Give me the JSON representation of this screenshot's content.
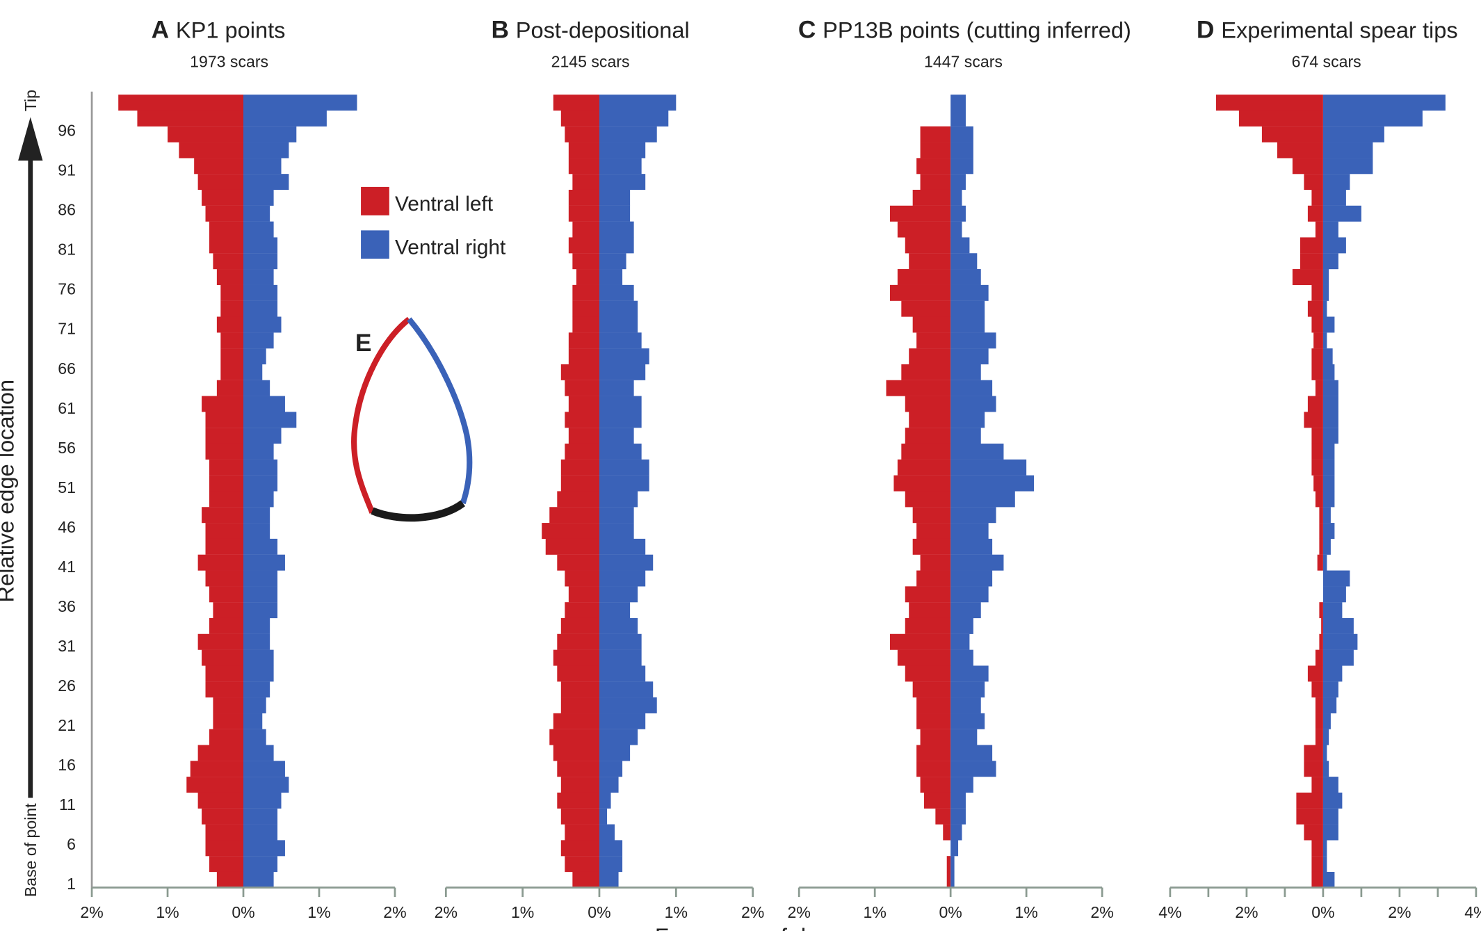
{
  "chart_data": {
    "type": "bar",
    "orientation": "horizontal-mirrored",
    "ylabel": "Relative edge location",
    "y_top_label": "Tip",
    "y_bottom_label": "Base of point",
    "xlabel": "Frequency of damage",
    "y_ticks": [
      "1",
      "6",
      "11",
      "16",
      "21",
      "26",
      "31",
      "36",
      "41",
      "46",
      "51",
      "56",
      "61",
      "66",
      "71",
      "76",
      "81",
      "86",
      "91",
      "96"
    ],
    "ylim": [
      1,
      100
    ],
    "legend": [
      {
        "name": "Ventral left",
        "color": "#cc1f26"
      },
      {
        "name": "Ventral right",
        "color": "#3a62b8"
      }
    ],
    "legend_placement": "top, inside panel A",
    "inset": {
      "label": "E",
      "left_color": "#cc1f26",
      "right_color": "#3a62b8",
      "base_color": "#1a1a1a"
    },
    "bin_start": [
      99,
      97,
      95,
      93,
      91,
      89,
      87,
      85,
      83,
      81,
      79,
      77,
      75,
      73,
      71,
      69,
      67,
      65,
      63,
      61,
      59,
      57,
      55,
      53,
      51,
      49,
      47,
      45,
      43,
      41,
      39,
      37,
      35,
      33,
      31,
      29,
      27,
      25,
      23,
      21,
      19,
      17,
      15,
      13,
      11,
      9,
      7,
      5,
      3,
      1
    ],
    "panels": [
      {
        "letter": "A",
        "title": "KP1 points",
        "subtitle": "1973 scars",
        "xlim": [
          -2,
          2
        ],
        "x_ticks": [
          "2%",
          "1%",
          "0%",
          "1%",
          "2%"
        ],
        "tick_step": 1,
        "ventral_left": [
          1.65,
          1.4,
          1.0,
          0.85,
          0.65,
          0.6,
          0.55,
          0.5,
          0.45,
          0.45,
          0.4,
          0.35,
          0.3,
          0.3,
          0.35,
          0.3,
          0.3,
          0.3,
          0.35,
          0.55,
          0.5,
          0.5,
          0.5,
          0.45,
          0.45,
          0.45,
          0.55,
          0.5,
          0.5,
          0.6,
          0.5,
          0.45,
          0.4,
          0.45,
          0.6,
          0.55,
          0.5,
          0.5,
          0.4,
          0.4,
          0.45,
          0.6,
          0.7,
          0.75,
          0.6,
          0.55,
          0.5,
          0.5,
          0.45,
          0.35
        ],
        "ventral_right": [
          1.5,
          1.1,
          0.7,
          0.6,
          0.5,
          0.6,
          0.4,
          0.35,
          0.4,
          0.45,
          0.45,
          0.4,
          0.45,
          0.45,
          0.5,
          0.4,
          0.3,
          0.25,
          0.35,
          0.55,
          0.7,
          0.5,
          0.4,
          0.45,
          0.45,
          0.4,
          0.35,
          0.35,
          0.45,
          0.55,
          0.45,
          0.45,
          0.45,
          0.35,
          0.35,
          0.4,
          0.4,
          0.35,
          0.3,
          0.25,
          0.3,
          0.4,
          0.55,
          0.6,
          0.5,
          0.45,
          0.45,
          0.55,
          0.45,
          0.4
        ]
      },
      {
        "letter": "B",
        "title": "Post-depositional",
        "subtitle": "2145 scars",
        "xlim": [
          -2,
          2
        ],
        "x_ticks": [
          "2%",
          "1%",
          "0%",
          "1%",
          "2%"
        ],
        "tick_step": 1,
        "ventral_left": [
          0.6,
          0.5,
          0.45,
          0.4,
          0.4,
          0.35,
          0.4,
          0.4,
          0.35,
          0.4,
          0.35,
          0.3,
          0.35,
          0.35,
          0.35,
          0.4,
          0.4,
          0.5,
          0.45,
          0.4,
          0.45,
          0.4,
          0.45,
          0.5,
          0.5,
          0.55,
          0.65,
          0.75,
          0.7,
          0.55,
          0.45,
          0.4,
          0.45,
          0.5,
          0.55,
          0.6,
          0.55,
          0.5,
          0.5,
          0.6,
          0.65,
          0.6,
          0.55,
          0.5,
          0.55,
          0.5,
          0.45,
          0.5,
          0.45,
          0.35
        ],
        "ventral_right": [
          1.0,
          0.9,
          0.75,
          0.6,
          0.55,
          0.6,
          0.4,
          0.4,
          0.45,
          0.45,
          0.35,
          0.3,
          0.45,
          0.5,
          0.5,
          0.55,
          0.65,
          0.6,
          0.45,
          0.55,
          0.55,
          0.45,
          0.55,
          0.65,
          0.65,
          0.5,
          0.45,
          0.45,
          0.6,
          0.7,
          0.6,
          0.5,
          0.4,
          0.5,
          0.55,
          0.55,
          0.6,
          0.7,
          0.75,
          0.6,
          0.5,
          0.4,
          0.3,
          0.25,
          0.15,
          0.1,
          0.2,
          0.3,
          0.3,
          0.25
        ]
      },
      {
        "letter": "C",
        "title": "PP13B points (cutting inferred)",
        "subtitle": "1447 scars",
        "xlim": [
          -2,
          2
        ],
        "x_ticks": [
          "2%",
          "1%",
          "0%",
          "1%",
          "2%"
        ],
        "tick_step": 1,
        "ventral_left": [
          0,
          0,
          0.4,
          0.4,
          0.45,
          0.4,
          0.5,
          0.8,
          0.7,
          0.6,
          0.55,
          0.7,
          0.8,
          0.65,
          0.5,
          0.45,
          0.55,
          0.65,
          0.85,
          0.6,
          0.55,
          0.6,
          0.65,
          0.7,
          0.75,
          0.6,
          0.5,
          0.45,
          0.5,
          0.4,
          0.45,
          0.6,
          0.55,
          0.6,
          0.8,
          0.7,
          0.6,
          0.5,
          0.45,
          0.45,
          0.4,
          0.45,
          0.45,
          0.4,
          0.35,
          0.2,
          0.1,
          0.0,
          0.05,
          0.05
        ],
        "ventral_right": [
          0.2,
          0.2,
          0.3,
          0.3,
          0.3,
          0.2,
          0.15,
          0.2,
          0.15,
          0.25,
          0.35,
          0.4,
          0.5,
          0.45,
          0.45,
          0.6,
          0.5,
          0.4,
          0.55,
          0.6,
          0.45,
          0.4,
          0.7,
          1.0,
          1.1,
          0.85,
          0.6,
          0.5,
          0.55,
          0.7,
          0.55,
          0.5,
          0.4,
          0.3,
          0.25,
          0.3,
          0.5,
          0.45,
          0.4,
          0.45,
          0.35,
          0.55,
          0.6,
          0.3,
          0.2,
          0.2,
          0.15,
          0.1,
          0.05,
          0.05
        ]
      },
      {
        "letter": "D",
        "title": "Experimental spear tips",
        "subtitle": "674 scars",
        "xlim": [
          -4,
          4
        ],
        "x_ticks": [
          "4%",
          "2%",
          "0%",
          "2%",
          "4%"
        ],
        "tick_step": 1,
        "ventral_left": [
          2.8,
          2.2,
          1.6,
          1.2,
          0.8,
          0.5,
          0.3,
          0.4,
          0.2,
          0.6,
          0.6,
          0.8,
          0.3,
          0.4,
          0.3,
          0.25,
          0.3,
          0.3,
          0.2,
          0.4,
          0.5,
          0.3,
          0.3,
          0.3,
          0.25,
          0.2,
          0.1,
          0.1,
          0.1,
          0.15,
          0.0,
          0.0,
          0.1,
          0.05,
          0.1,
          0.2,
          0.4,
          0.3,
          0.2,
          0.2,
          0.2,
          0.5,
          0.5,
          0.3,
          0.7,
          0.7,
          0.5,
          0.3,
          0.3,
          0.3
        ],
        "ventral_right": [
          3.2,
          2.6,
          1.6,
          1.3,
          1.3,
          0.7,
          0.6,
          1.0,
          0.4,
          0.6,
          0.4,
          0.15,
          0.15,
          0.1,
          0.3,
          0.1,
          0.25,
          0.3,
          0.4,
          0.4,
          0.4,
          0.4,
          0.3,
          0.3,
          0.3,
          0.3,
          0.2,
          0.3,
          0.2,
          0.1,
          0.7,
          0.6,
          0.5,
          0.8,
          0.9,
          0.8,
          0.5,
          0.4,
          0.35,
          0.2,
          0.15,
          0.1,
          0.15,
          0.4,
          0.5,
          0.4,
          0.4,
          0.1,
          0.1,
          0.3
        ]
      }
    ]
  }
}
